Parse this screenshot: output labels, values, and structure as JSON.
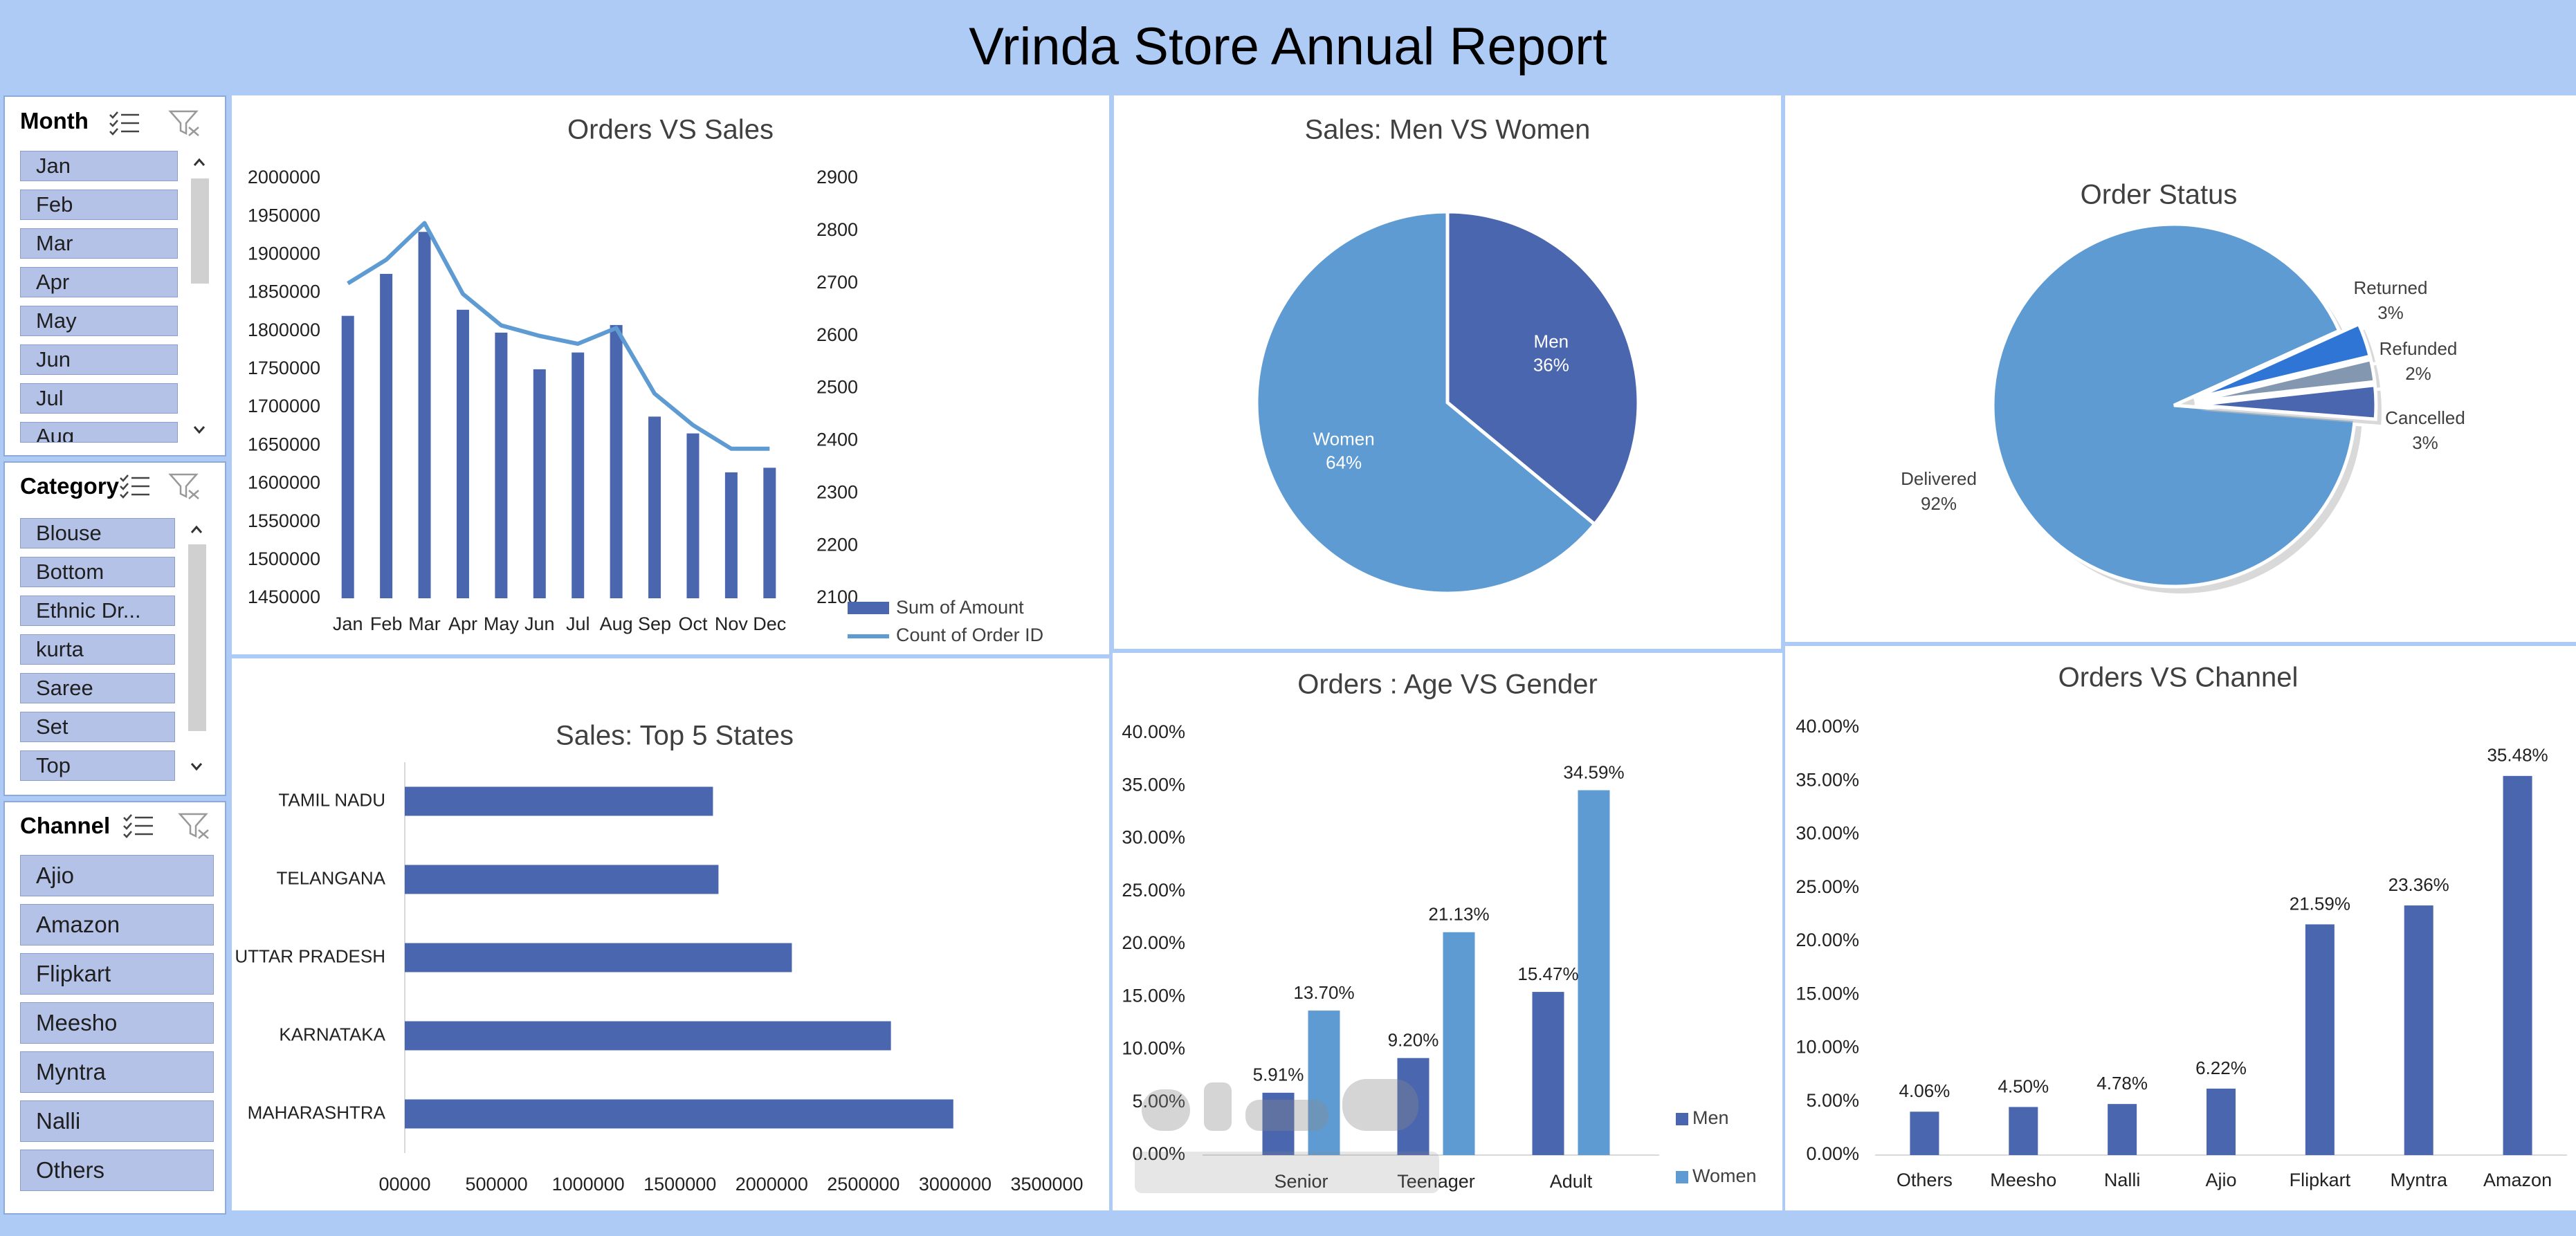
{
  "report": {
    "title": "Vrinda Store Annual Report"
  },
  "slicers": {
    "month": {
      "title": "Month",
      "items": [
        "Jan",
        "Feb",
        "Mar",
        "Apr",
        "May",
        "Jun",
        "Jul",
        "Aug"
      ]
    },
    "category": {
      "title": "Category",
      "items": [
        "Blouse",
        "Bottom",
        "Ethnic Dr...",
        "kurta",
        "Saree",
        "Set",
        "Top"
      ]
    },
    "channel": {
      "title": "Channel",
      "items": [
        "Ajio",
        "Amazon",
        "Flipkart",
        "Meesho",
        "Myntra",
        "Nalli",
        "Others"
      ]
    }
  },
  "colors": {
    "dark": "#4a66ae",
    "light": "#5e9bd3",
    "grey": "#8497b0",
    "bright": "#2e75d6",
    "text": "#404040",
    "tick": "#222222"
  },
  "chart_data": [
    {
      "id": "orders_vs_sales",
      "type": "bar",
      "title": "Orders VS Sales",
      "categories": [
        "Jan",
        "Feb",
        "Mar",
        "Apr",
        "May",
        "Jun",
        "Jul",
        "Aug",
        "Sep",
        "Oct",
        "Nov",
        "Dec"
      ],
      "series": [
        {
          "name": "Sum of Amount",
          "type": "bar",
          "axis": "left",
          "values": [
            1820000,
            1875000,
            1930000,
            1828000,
            1798000,
            1750000,
            1772000,
            1808000,
            1688000,
            1666000,
            1615000,
            1621000
          ]
        },
        {
          "name": "Count of Order ID",
          "type": "line",
          "axis": "right",
          "values": [
            2700,
            2745,
            2815,
            2680,
            2620,
            2600,
            2585,
            2615,
            2490,
            2430,
            2385,
            2385
          ]
        }
      ],
      "ylim": [
        1450000,
        2000000
      ],
      "yticks": [
        "2000000",
        "1950000",
        "1900000",
        "1850000",
        "1800000",
        "1750000",
        "1700000",
        "1650000",
        "1600000",
        "1550000",
        "1500000",
        "1450000"
      ],
      "y2lim": [
        2100,
        2900
      ],
      "y2ticks": [
        "2900",
        "2800",
        "2700",
        "2600",
        "2500",
        "2400",
        "2300",
        "2200",
        "2100"
      ],
      "legend": [
        "Sum of Amount",
        "Count of Order ID"
      ]
    },
    {
      "id": "sales_men_women",
      "type": "pie",
      "title": "Sales: Men VS Women",
      "labels": [
        "Men",
        "Women"
      ],
      "values": [
        36,
        64
      ],
      "pct_labels": [
        "36%",
        "64%"
      ]
    },
    {
      "id": "order_status",
      "type": "pie",
      "title": "Order Status",
      "labels": [
        "Returned",
        "Refunded",
        "Cancelled",
        "Delivered"
      ],
      "values": [
        3,
        2,
        3,
        92
      ],
      "pct_labels": [
        "3%",
        "2%",
        "3%",
        "92%"
      ]
    },
    {
      "id": "top5_states",
      "type": "bar",
      "orientation": "horizontal",
      "title": "Sales: Top 5 States",
      "categories": [
        "TAMIL NADU",
        "TELANGANA",
        "UTTAR PRADESH",
        "KARNATAKA",
        "MAHARASHTRA"
      ],
      "values": [
        1680000,
        1710000,
        2110000,
        2650000,
        2990000
      ],
      "xlim": [
        0,
        3500000
      ],
      "xticks": [
        "00000",
        "500000",
        "1000000",
        "1500000",
        "2000000",
        "2500000",
        "3000000",
        "3500000"
      ]
    },
    {
      "id": "age_vs_gender",
      "type": "bar",
      "title": "Orders : Age VS Gender",
      "categories": [
        "Senior",
        "Teenager",
        "Adult"
      ],
      "series": [
        {
          "name": "Men",
          "values": [
            5.91,
            9.2,
            15.47
          ],
          "labels": [
            "5.91%",
            "9.20%",
            "15.47%"
          ]
        },
        {
          "name": "Women",
          "values": [
            13.7,
            21.13,
            34.59
          ],
          "labels": [
            "13.70%",
            "21.13%",
            "34.59%"
          ]
        }
      ],
      "ylim": [
        0,
        40
      ],
      "yticks": [
        "40.00%",
        "35.00%",
        "30.00%",
        "25.00%",
        "20.00%",
        "15.00%",
        "10.00%",
        "5.00%",
        "0.00%"
      ],
      "legend": [
        "Men",
        "Women"
      ]
    },
    {
      "id": "orders_vs_channel",
      "type": "bar",
      "title": "Orders VS Channel",
      "categories": [
        "Others",
        "Meesho",
        "Nalli",
        "Ajio",
        "Flipkart",
        "Myntra",
        "Amazon"
      ],
      "values": [
        4.06,
        4.5,
        4.78,
        6.22,
        21.59,
        23.36,
        35.48
      ],
      "labels": [
        "4.06%",
        "4.50%",
        "4.78%",
        "6.22%",
        "21.59%",
        "23.36%",
        "35.48%"
      ],
      "ylim": [
        0,
        40
      ],
      "yticks": [
        "40.00%",
        "35.00%",
        "30.00%",
        "25.00%",
        "20.00%",
        "15.00%",
        "10.00%",
        "5.00%",
        "0.00%"
      ]
    }
  ]
}
